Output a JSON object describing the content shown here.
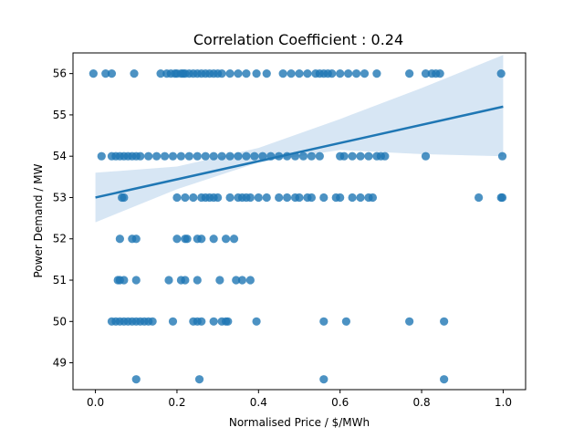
{
  "chart_data": {
    "type": "scatter",
    "title": "Correlation Coefficient : 0.24",
    "xlabel": "Normalised Price / $/MWh",
    "ylabel": "Power Demand / MW",
    "xlim": [
      -0.055,
      1.055
    ],
    "ylim": [
      48.35,
      56.5
    ],
    "xticks": [
      0.0,
      0.2,
      0.4,
      0.6,
      0.8,
      1.0
    ],
    "xtick_labels": [
      "0.0",
      "0.2",
      "0.4",
      "0.6",
      "0.8",
      "1.0"
    ],
    "yticks": [
      49,
      50,
      51,
      52,
      53,
      54,
      55,
      56
    ],
    "ytick_labels": [
      "49",
      "50",
      "51",
      "52",
      "53",
      "54",
      "55",
      "56"
    ],
    "grid": false,
    "colors": {
      "points": "#1f77b4",
      "line": "#1f77b4",
      "band": "#c6dbef"
    },
    "regression": {
      "x": [
        0.0,
        1.0
      ],
      "y": [
        53.0,
        55.2
      ]
    },
    "confidence_band": {
      "x": [
        0.0,
        0.2,
        0.4,
        0.6,
        0.8,
        1.0
      ],
      "upper": [
        53.6,
        53.75,
        54.2,
        54.9,
        55.65,
        56.45
      ],
      "lower": [
        52.4,
        53.2,
        53.85,
        54.15,
        54.05,
        54.0
      ]
    },
    "points": [
      [
        -0.005,
        56
      ],
      [
        0.025,
        56
      ],
      [
        0.04,
        56
      ],
      [
        0.095,
        56
      ],
      [
        0.16,
        56
      ],
      [
        0.175,
        56
      ],
      [
        0.185,
        56
      ],
      [
        0.195,
        56
      ],
      [
        0.2,
        56
      ],
      [
        0.21,
        56
      ],
      [
        0.215,
        56
      ],
      [
        0.22,
        56
      ],
      [
        0.23,
        56
      ],
      [
        0.24,
        56
      ],
      [
        0.25,
        56
      ],
      [
        0.26,
        56
      ],
      [
        0.27,
        56
      ],
      [
        0.28,
        56
      ],
      [
        0.29,
        56
      ],
      [
        0.3,
        56
      ],
      [
        0.31,
        56
      ],
      [
        0.33,
        56
      ],
      [
        0.35,
        56
      ],
      [
        0.37,
        56
      ],
      [
        0.395,
        56
      ],
      [
        0.42,
        56
      ],
      [
        0.46,
        56
      ],
      [
        0.48,
        56
      ],
      [
        0.5,
        56
      ],
      [
        0.52,
        56
      ],
      [
        0.54,
        56
      ],
      [
        0.55,
        56
      ],
      [
        0.56,
        56
      ],
      [
        0.57,
        56
      ],
      [
        0.58,
        56
      ],
      [
        0.6,
        56
      ],
      [
        0.62,
        56
      ],
      [
        0.64,
        56
      ],
      [
        0.66,
        56
      ],
      [
        0.69,
        56
      ],
      [
        0.77,
        56
      ],
      [
        0.81,
        56
      ],
      [
        0.825,
        56
      ],
      [
        0.835,
        56
      ],
      [
        0.845,
        56
      ],
      [
        0.995,
        56
      ],
      [
        0.015,
        54
      ],
      [
        0.04,
        54
      ],
      [
        0.05,
        54
      ],
      [
        0.06,
        54
      ],
      [
        0.07,
        54
      ],
      [
        0.08,
        54
      ],
      [
        0.09,
        54
      ],
      [
        0.1,
        54
      ],
      [
        0.11,
        54
      ],
      [
        0.13,
        54
      ],
      [
        0.15,
        54
      ],
      [
        0.17,
        54
      ],
      [
        0.19,
        54
      ],
      [
        0.21,
        54
      ],
      [
        0.23,
        54
      ],
      [
        0.25,
        54
      ],
      [
        0.27,
        54
      ],
      [
        0.29,
        54
      ],
      [
        0.31,
        54
      ],
      [
        0.33,
        54
      ],
      [
        0.35,
        54
      ],
      [
        0.37,
        54
      ],
      [
        0.39,
        54
      ],
      [
        0.41,
        54
      ],
      [
        0.43,
        54
      ],
      [
        0.45,
        54
      ],
      [
        0.47,
        54
      ],
      [
        0.49,
        54
      ],
      [
        0.51,
        54
      ],
      [
        0.53,
        54
      ],
      [
        0.55,
        54
      ],
      [
        0.6,
        54
      ],
      [
        0.61,
        54
      ],
      [
        0.63,
        54
      ],
      [
        0.65,
        54
      ],
      [
        0.67,
        54
      ],
      [
        0.69,
        54
      ],
      [
        0.7,
        54
      ],
      [
        0.71,
        54
      ],
      [
        0.81,
        54
      ],
      [
        0.998,
        54
      ],
      [
        0.065,
        53
      ],
      [
        0.07,
        53
      ],
      [
        0.2,
        53
      ],
      [
        0.22,
        53
      ],
      [
        0.24,
        53
      ],
      [
        0.26,
        53
      ],
      [
        0.27,
        53
      ],
      [
        0.28,
        53
      ],
      [
        0.29,
        53
      ],
      [
        0.3,
        53
      ],
      [
        0.33,
        53
      ],
      [
        0.35,
        53
      ],
      [
        0.36,
        53
      ],
      [
        0.37,
        53
      ],
      [
        0.38,
        53
      ],
      [
        0.4,
        53
      ],
      [
        0.42,
        53
      ],
      [
        0.45,
        53
      ],
      [
        0.47,
        53
      ],
      [
        0.49,
        53
      ],
      [
        0.5,
        53
      ],
      [
        0.52,
        53
      ],
      [
        0.53,
        53
      ],
      [
        0.56,
        53
      ],
      [
        0.59,
        53
      ],
      [
        0.6,
        53
      ],
      [
        0.63,
        53
      ],
      [
        0.65,
        53
      ],
      [
        0.67,
        53
      ],
      [
        0.68,
        53
      ],
      [
        0.94,
        53
      ],
      [
        0.995,
        53
      ],
      [
        0.998,
        53
      ],
      [
        0.06,
        52
      ],
      [
        0.09,
        52
      ],
      [
        0.1,
        52
      ],
      [
        0.2,
        52
      ],
      [
        0.22,
        52
      ],
      [
        0.225,
        52
      ],
      [
        0.25,
        52
      ],
      [
        0.26,
        52
      ],
      [
        0.29,
        52
      ],
      [
        0.32,
        52
      ],
      [
        0.34,
        52
      ],
      [
        0.055,
        51
      ],
      [
        0.06,
        51
      ],
      [
        0.07,
        51
      ],
      [
        0.1,
        51
      ],
      [
        0.18,
        51
      ],
      [
        0.21,
        51
      ],
      [
        0.22,
        51
      ],
      [
        0.25,
        51
      ],
      [
        0.305,
        51
      ],
      [
        0.345,
        51
      ],
      [
        0.36,
        51
      ],
      [
        0.38,
        51
      ],
      [
        0.04,
        50
      ],
      [
        0.05,
        50
      ],
      [
        0.06,
        50
      ],
      [
        0.07,
        50
      ],
      [
        0.08,
        50
      ],
      [
        0.09,
        50
      ],
      [
        0.1,
        50
      ],
      [
        0.11,
        50
      ],
      [
        0.12,
        50
      ],
      [
        0.13,
        50
      ],
      [
        0.14,
        50
      ],
      [
        0.19,
        50
      ],
      [
        0.24,
        50
      ],
      [
        0.25,
        50
      ],
      [
        0.26,
        50
      ],
      [
        0.29,
        50
      ],
      [
        0.31,
        50
      ],
      [
        0.32,
        50
      ],
      [
        0.325,
        50
      ],
      [
        0.395,
        50
      ],
      [
        0.56,
        50
      ],
      [
        0.615,
        50
      ],
      [
        0.77,
        50
      ],
      [
        0.855,
        50
      ],
      [
        0.1,
        48.6
      ],
      [
        0.255,
        48.6
      ],
      [
        0.56,
        48.6
      ],
      [
        0.855,
        48.6
      ]
    ]
  }
}
